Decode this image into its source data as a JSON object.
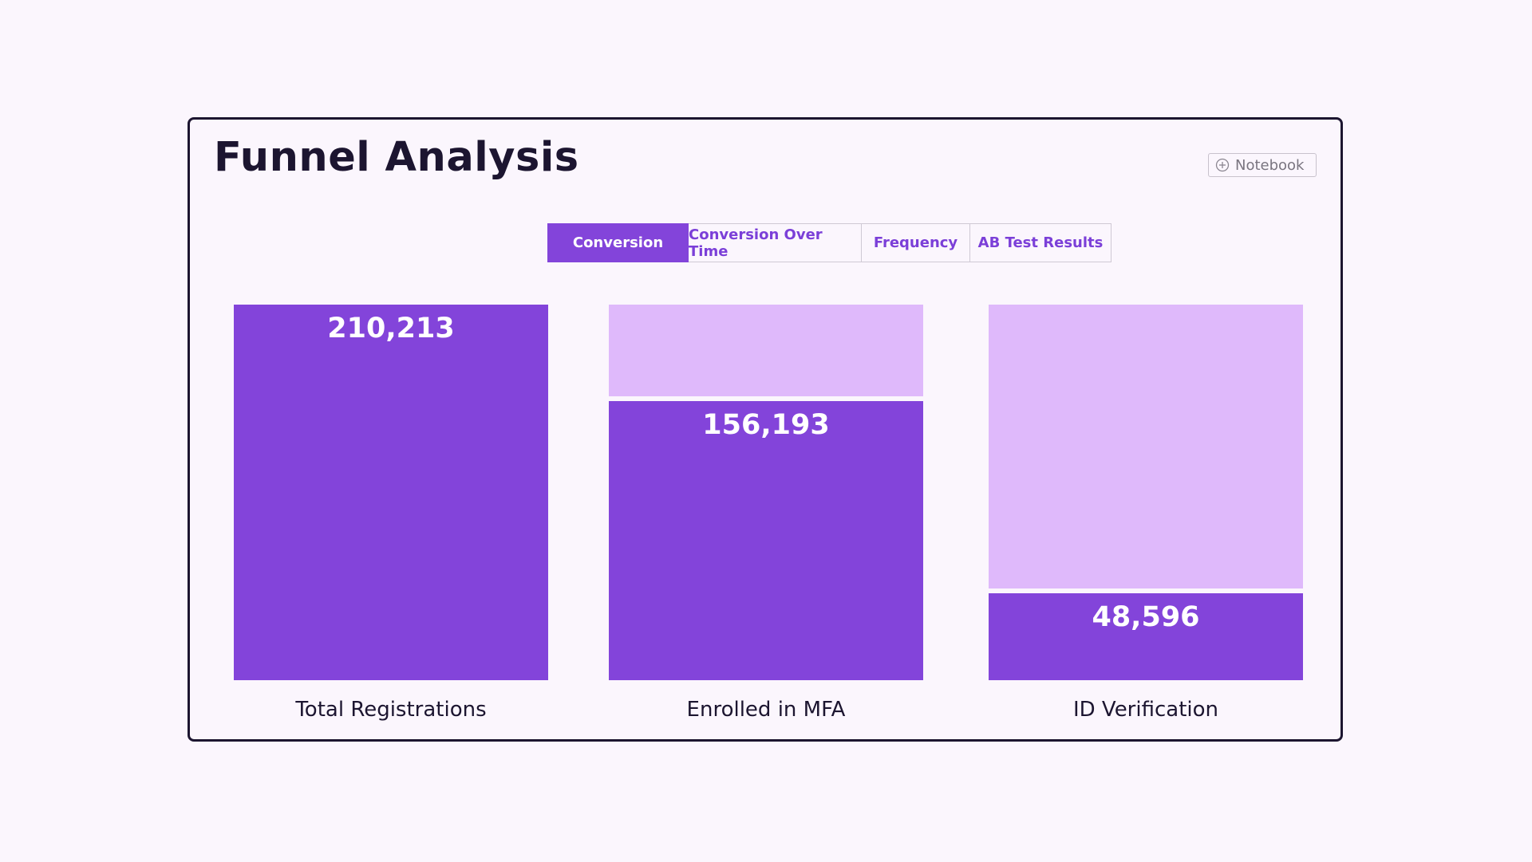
{
  "header": {
    "title": "Funnel Analysis",
    "notebook_label": "Notebook"
  },
  "tabs": [
    {
      "label": "Conversion",
      "active": true
    },
    {
      "label": "Conversion Over Time",
      "active": false
    },
    {
      "label": "Frequency",
      "active": false
    },
    {
      "label": "AB Test Results",
      "active": false
    }
  ],
  "colors": {
    "accent": "#8344da",
    "remaining": "#dfb9fb",
    "background": "#fbf6fd",
    "text": "#1c1530"
  },
  "chart_data": {
    "type": "bar",
    "categories": [
      "Total Registrations",
      "Enrolled in MFA",
      "ID Verification"
    ],
    "values": [
      210213,
      156193,
      48596
    ],
    "value_labels": [
      "210,213",
      "156,193",
      "48,596"
    ],
    "ylim": [
      0,
      210213
    ],
    "grid": false
  }
}
